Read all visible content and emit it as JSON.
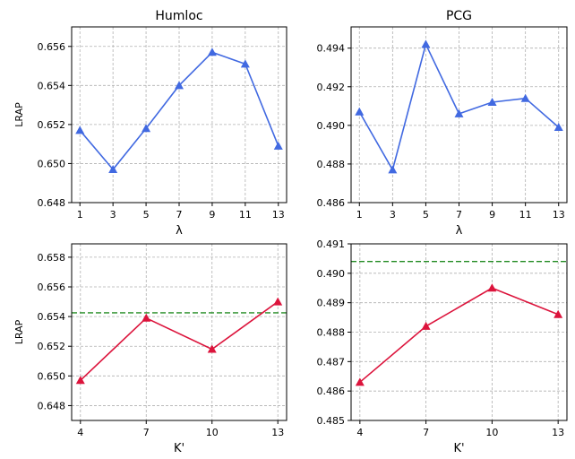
{
  "chart_data": [
    {
      "type": "line",
      "title": "Humloc",
      "xlabel": "λ",
      "ylabel": "LRAP",
      "x": [
        1,
        3,
        5,
        7,
        9,
        11,
        13
      ],
      "xlim": [
        0.5,
        13.5
      ],
      "ylim": [
        0.648,
        0.657
      ],
      "xticks": [
        1,
        3,
        5,
        7,
        9,
        11,
        13
      ],
      "yticks": [
        0.648,
        0.65,
        0.652,
        0.654,
        0.656
      ],
      "ytick_labels": [
        "0.648",
        "0.650",
        "0.652",
        "0.654",
        "0.656"
      ],
      "grid": true,
      "series": [
        {
          "values": [
            0.6517,
            0.6497,
            0.6518,
            0.654,
            0.6557,
            0.6551,
            0.6509
          ],
          "color": "#4169e1",
          "marker": "triangle"
        }
      ],
      "baseline": null
    },
    {
      "type": "line",
      "title": "PCG",
      "xlabel": "λ",
      "ylabel": "",
      "x": [
        1,
        3,
        5,
        7,
        9,
        11,
        13
      ],
      "xlim": [
        0.5,
        13.5
      ],
      "ylim": [
        0.486,
        0.4951
      ],
      "xticks": [
        1,
        3,
        5,
        7,
        9,
        11,
        13
      ],
      "yticks": [
        0.486,
        0.488,
        0.49,
        0.492,
        0.494
      ],
      "ytick_labels": [
        "0.486",
        "0.488",
        "0.490",
        "0.492",
        "0.494"
      ],
      "grid": true,
      "series": [
        {
          "values": [
            0.4907,
            0.4877,
            0.4942,
            0.4906,
            0.4912,
            0.4914,
            0.4899
          ],
          "color": "#4169e1",
          "marker": "triangle"
        }
      ],
      "baseline": null
    },
    {
      "type": "line",
      "title": "",
      "xlabel": "K'",
      "ylabel": "LRAP",
      "x": [
        4,
        7,
        10,
        13
      ],
      "xlim": [
        3.6,
        13.4
      ],
      "ylim": [
        0.647,
        0.6589
      ],
      "xticks": [
        4,
        7,
        10,
        13
      ],
      "yticks": [
        0.648,
        0.65,
        0.652,
        0.654,
        0.656,
        0.658
      ],
      "ytick_labels": [
        "0.648",
        "0.650",
        "0.652",
        "0.654",
        "0.656",
        "0.658"
      ],
      "grid": true,
      "series": [
        {
          "values": [
            0.6497,
            0.6539,
            0.6518,
            0.655
          ],
          "color": "#dc143c",
          "marker": "triangle"
        }
      ],
      "baseline": {
        "value": 0.65425,
        "color": "#228b22",
        "style": "dashed"
      }
    },
    {
      "type": "line",
      "title": "",
      "xlabel": "K'",
      "ylabel": "",
      "x": [
        4,
        7,
        10,
        13
      ],
      "xlim": [
        3.6,
        13.4
      ],
      "ylim": [
        0.485,
        0.491
      ],
      "xticks": [
        4,
        7,
        10,
        13
      ],
      "yticks": [
        0.485,
        0.486,
        0.487,
        0.488,
        0.489,
        0.49,
        0.491
      ],
      "ytick_labels": [
        "0.485",
        "0.486",
        "0.487",
        "0.488",
        "0.489",
        "0.490",
        "0.491"
      ],
      "grid": true,
      "series": [
        {
          "values": [
            0.4863,
            0.4882,
            0.4895,
            0.4886
          ],
          "color": "#dc143c",
          "marker": "triangle"
        }
      ],
      "baseline": {
        "value": 0.4904,
        "color": "#228b22",
        "style": "dashed"
      }
    }
  ]
}
